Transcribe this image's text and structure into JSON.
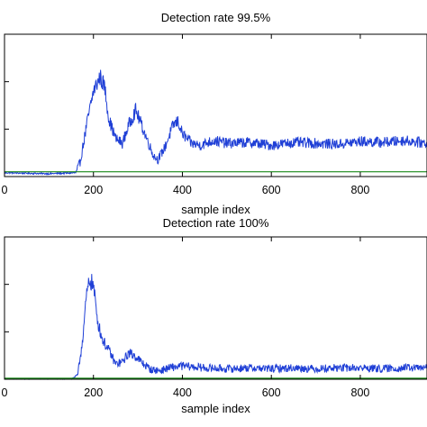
{
  "chart_data": [
    {
      "type": "line",
      "title": "Detection rate 99.5%",
      "xlabel": "sample index",
      "ylabel": "",
      "xlim": [
        0,
        950
      ],
      "ylim": [
        0,
        1.5
      ],
      "x_ticks": [
        0,
        200,
        400,
        600,
        800
      ],
      "x_tick_labels": [
        "0",
        "200",
        "400",
        "600",
        "800"
      ],
      "y_ticks": [
        0.5,
        1.0
      ],
      "y_tick_labels": [
        "",
        ""
      ],
      "grid": false,
      "legend": "none",
      "series": [
        {
          "color": "#1f3fd6",
          "x": [
            0,
            100,
            160,
            170,
            185,
            200,
            215,
            225,
            235,
            250,
            265,
            280,
            295,
            305,
            320,
            335,
            345,
            360,
            380,
            390,
            400,
            420,
            440,
            470,
            500,
            550,
            600,
            650,
            700,
            750,
            800,
            850,
            900,
            950
          ],
          "values": [
            0.04,
            0.03,
            0.04,
            0.15,
            0.55,
            0.9,
            1.05,
            0.95,
            0.6,
            0.4,
            0.35,
            0.55,
            0.7,
            0.58,
            0.4,
            0.22,
            0.18,
            0.3,
            0.55,
            0.58,
            0.45,
            0.35,
            0.33,
            0.38,
            0.35,
            0.36,
            0.33,
            0.36,
            0.35,
            0.34,
            0.37,
            0.36,
            0.38,
            0.35
          ]
        },
        {
          "color": "#1a8a1a",
          "x": [
            0,
            950
          ],
          "values": [
            0.05,
            0.05
          ]
        }
      ]
    },
    {
      "type": "line",
      "title": "Detection rate 100%",
      "xlabel": "sample index",
      "ylabel": "",
      "xlim": [
        0,
        950
      ],
      "ylim": [
        0,
        1.5
      ],
      "x_ticks": [
        0,
        200,
        400,
        600,
        800
      ],
      "x_tick_labels": [
        "0",
        "200",
        "400",
        "600",
        "800"
      ],
      "y_ticks": [
        0.5,
        1.0
      ],
      "y_tick_labels": [
        "",
        ""
      ],
      "grid": false,
      "legend": "none",
      "series": [
        {
          "color": "#1f3fd6",
          "x": [
            0,
            150,
            165,
            175,
            185,
            192,
            200,
            210,
            220,
            235,
            250,
            265,
            280,
            295,
            310,
            330,
            350,
            370,
            400,
            450,
            500,
            550,
            600,
            650,
            700,
            750,
            800,
            850,
            900,
            950
          ],
          "values": [
            0.0,
            0.0,
            0.05,
            0.4,
            0.9,
            1.05,
            0.98,
            0.6,
            0.42,
            0.3,
            0.16,
            0.18,
            0.28,
            0.24,
            0.17,
            0.1,
            0.09,
            0.12,
            0.14,
            0.12,
            0.11,
            0.12,
            0.11,
            0.12,
            0.11,
            0.12,
            0.12,
            0.11,
            0.12,
            0.12
          ]
        },
        {
          "color": "#1a8a1a",
          "x": [
            0,
            950
          ],
          "values": [
            0.01,
            0.01
          ]
        }
      ]
    }
  ]
}
